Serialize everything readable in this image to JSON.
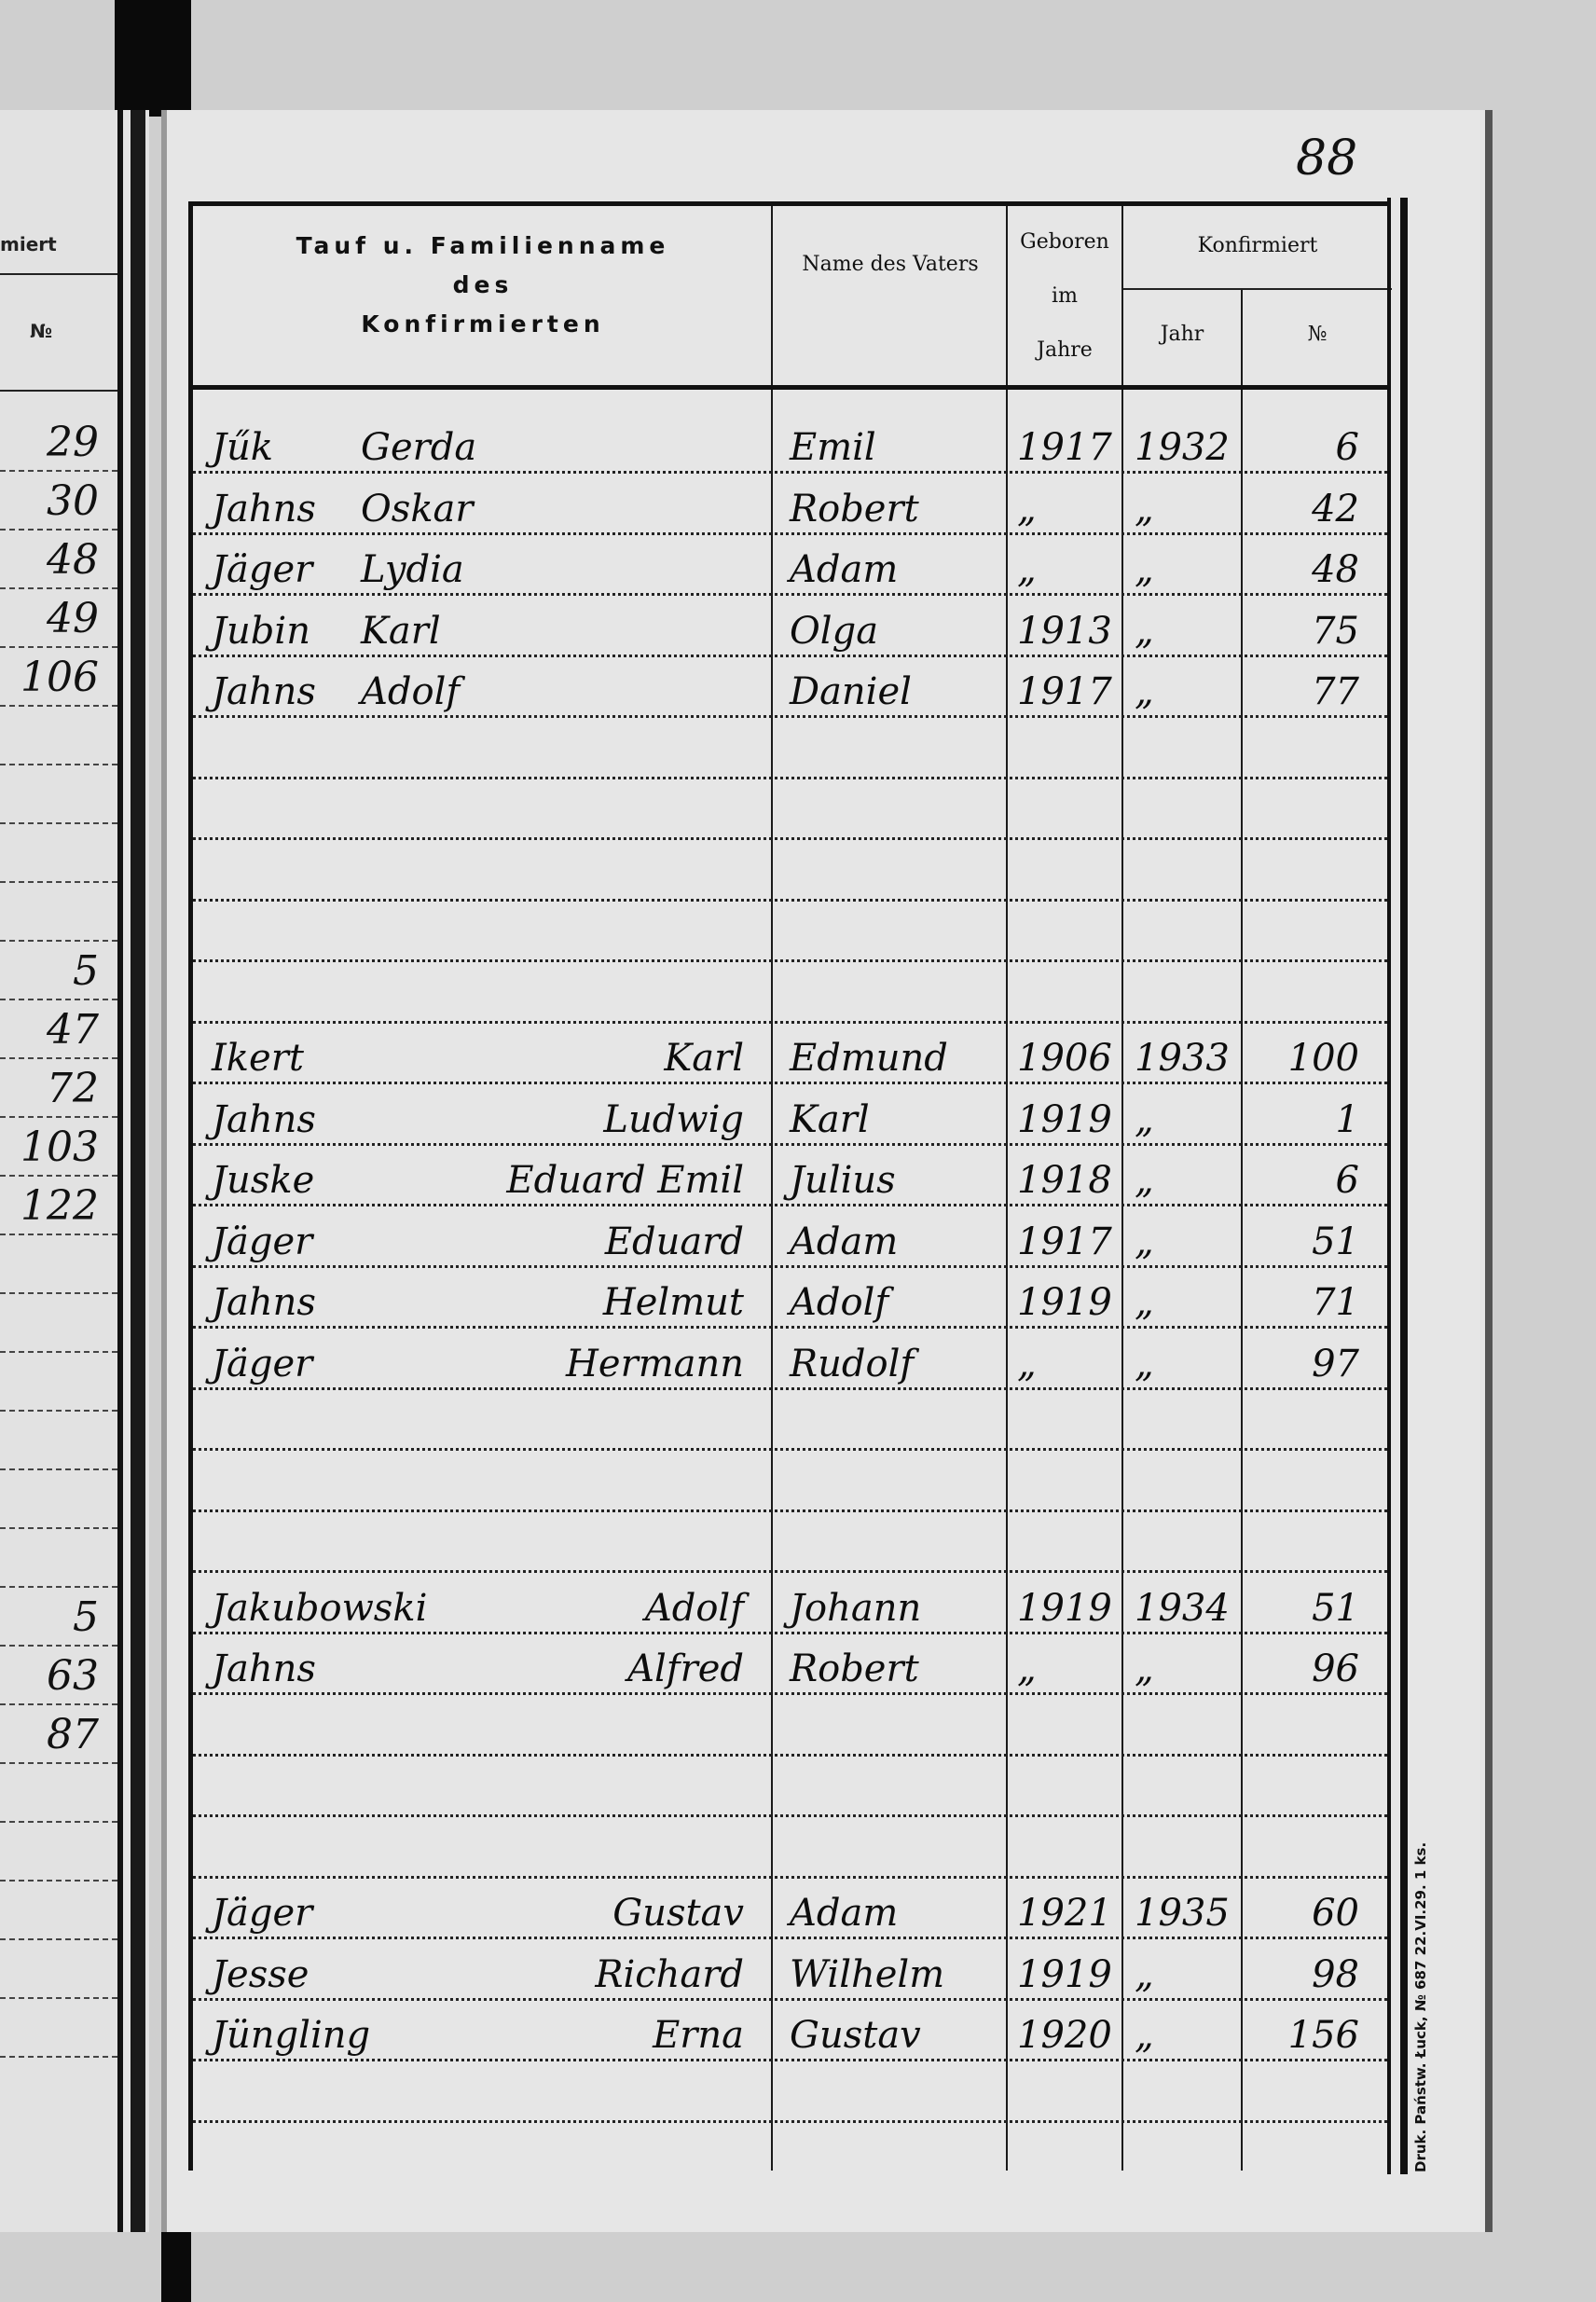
{
  "page_number": "88",
  "left_page": {
    "header_konfirmiert": "miert",
    "header_nr": "№",
    "numbers": [
      "29",
      "30",
      "48",
      "49",
      "106",
      "",
      "",
      "",
      "",
      "5",
      "47",
      "72",
      "103",
      "122",
      "",
      "",
      "",
      "",
      "",
      "",
      "5",
      "63",
      "87",
      "",
      "",
      "",
      "",
      ""
    ]
  },
  "table": {
    "headers": {
      "name_line1": "Tauf u. Familienname",
      "name_line2": "des",
      "name_line3": "Konfirmierten",
      "father": "Name des Vaters",
      "born_line1": "Geboren",
      "born_line2": "im",
      "born_line3": "Jahre",
      "confirmed": "Konfirmiert",
      "confirmed_year": "Jahr",
      "confirmed_nr": "№"
    },
    "rows": [
      {
        "surname": "Jűk",
        "given": "Gerda",
        "father": "Emil",
        "born": "1917",
        "year": "1932",
        "nr": "6"
      },
      {
        "surname": "Jahns",
        "given": "Oskar",
        "father": "Robert",
        "born": "„",
        "year": "„",
        "nr": "42"
      },
      {
        "surname": "Jäger",
        "given": "Lydia",
        "father": "Adam",
        "born": "„",
        "year": "„",
        "nr": "48"
      },
      {
        "surname": "Jubin",
        "given": "Karl",
        "father": "Olga",
        "born": "1913",
        "year": "„",
        "nr": "75"
      },
      {
        "surname": "Jahns",
        "given": "Adolf",
        "father": "Daniel",
        "born": "1917",
        "year": "„",
        "nr": "77"
      },
      {},
      {},
      {},
      {},
      {},
      {
        "surname": "Ikert",
        "given": "Karl",
        "father": "Edmund",
        "born": "1906",
        "year": "1933",
        "nr": "100"
      },
      {
        "surname": "Jahns",
        "given": "Ludwig",
        "father": "Karl",
        "born": "1919",
        "year": "„",
        "nr": "1"
      },
      {
        "surname": "Juske",
        "given": "Eduard Emil",
        "father": "Julius",
        "born": "1918",
        "year": "„",
        "nr": "6"
      },
      {
        "surname": "Jäger",
        "given": "Eduard",
        "father": "Adam",
        "born": "1917",
        "year": "„",
        "nr": "51"
      },
      {
        "surname": "Jahns",
        "given": "Helmut",
        "father": "Adolf",
        "born": "1919",
        "year": "„",
        "nr": "71"
      },
      {
        "surname": "Jäger",
        "given": "Hermann",
        "father": "Rudolf",
        "born": "„",
        "year": "„",
        "nr": "97"
      },
      {},
      {},
      {},
      {
        "surname": "Jakubowski",
        "given": "Adolf",
        "father": "Johann",
        "born": "1919",
        "year": "1934",
        "nr": "51"
      },
      {
        "surname": "Jahns",
        "given": "Alfred",
        "father": "Robert",
        "born": "„",
        "year": "„",
        "nr": "96"
      },
      {},
      {},
      {},
      {
        "surname": "Jäger",
        "given": "Gustav",
        "father": "Adam",
        "born": "1921",
        "year": "1935",
        "nr": "60"
      },
      {
        "surname": "Jesse",
        "given": "Richard",
        "father": "Wilhelm",
        "born": "1919",
        "year": "„",
        "nr": "98"
      },
      {
        "surname": "Jüngling",
        "given": "Erna",
        "father": "Gustav",
        "born": "1920",
        "year": "„",
        "nr": "156"
      },
      {}
    ]
  },
  "imprint": "Druk. Państw. Łuck, № 687 22.VI.29. 1 ks."
}
